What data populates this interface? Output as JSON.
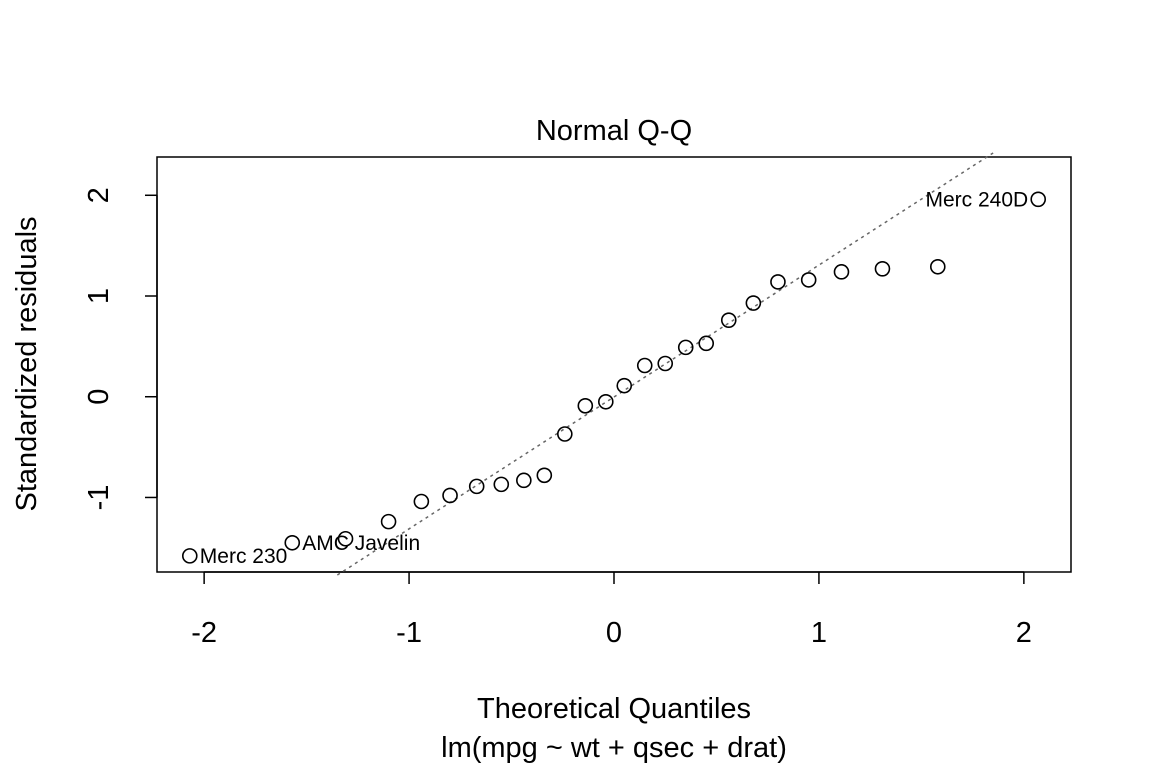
{
  "chart_data": {
    "type": "scatter",
    "title": "Normal Q-Q",
    "xlabel": "Theoretical Quantiles",
    "subtitle": "lm(mpg ~ wt + qsec + drat)",
    "ylabel": "Standardized residuals",
    "xlim": [
      -2.23,
      2.23
    ],
    "ylim": [
      -1.74,
      2.38
    ],
    "xticks": [
      -2,
      -1,
      0,
      1,
      2
    ],
    "yticks": [
      -1,
      0,
      1,
      2
    ],
    "xtick_labels": [
      "-2",
      "-1",
      "0",
      "1",
      "2"
    ],
    "ytick_labels": [
      "-1",
      "0",
      "1",
      "2"
    ],
    "grid": false,
    "reference_line": {
      "style": "dotted",
      "color": "#666666",
      "points": [
        [
          -1.35,
          -1.77
        ],
        [
          1.85,
          2.42
        ]
      ]
    },
    "points": [
      {
        "x": -2.07,
        "y": -1.58
      },
      {
        "x": -1.57,
        "y": -1.45
      },
      {
        "x": -1.31,
        "y": -1.41
      },
      {
        "x": -1.1,
        "y": -1.24
      },
      {
        "x": -0.94,
        "y": -1.04
      },
      {
        "x": -0.8,
        "y": -0.98
      },
      {
        "x": -0.67,
        "y": -0.89
      },
      {
        "x": -0.55,
        "y": -0.87
      },
      {
        "x": -0.44,
        "y": -0.83
      },
      {
        "x": -0.34,
        "y": -0.78
      },
      {
        "x": -0.24,
        "y": -0.37
      },
      {
        "x": -0.14,
        "y": -0.09
      },
      {
        "x": -0.04,
        "y": -0.05
      },
      {
        "x": 0.05,
        "y": 0.11
      },
      {
        "x": 0.15,
        "y": 0.31
      },
      {
        "x": 0.25,
        "y": 0.33
      },
      {
        "x": 0.35,
        "y": 0.49
      },
      {
        "x": 0.45,
        "y": 0.53
      },
      {
        "x": 0.56,
        "y": 0.76
      },
      {
        "x": 0.68,
        "y": 0.93
      },
      {
        "x": 0.8,
        "y": 1.14
      },
      {
        "x": 0.95,
        "y": 1.16
      },
      {
        "x": 1.11,
        "y": 1.24
      },
      {
        "x": 1.31,
        "y": 1.27
      },
      {
        "x": 1.58,
        "y": 1.29
      },
      {
        "x": 2.07,
        "y": 1.96
      }
    ],
    "annotations": [
      {
        "text": "Merc 230",
        "x": -2.07,
        "y": -1.58,
        "side": "right"
      },
      {
        "text": "AMC Javelin",
        "x": -1.57,
        "y": -1.45,
        "side": "right"
      },
      {
        "text": "Merc 240D",
        "x": 2.07,
        "y": 1.96,
        "side": "left"
      }
    ]
  }
}
